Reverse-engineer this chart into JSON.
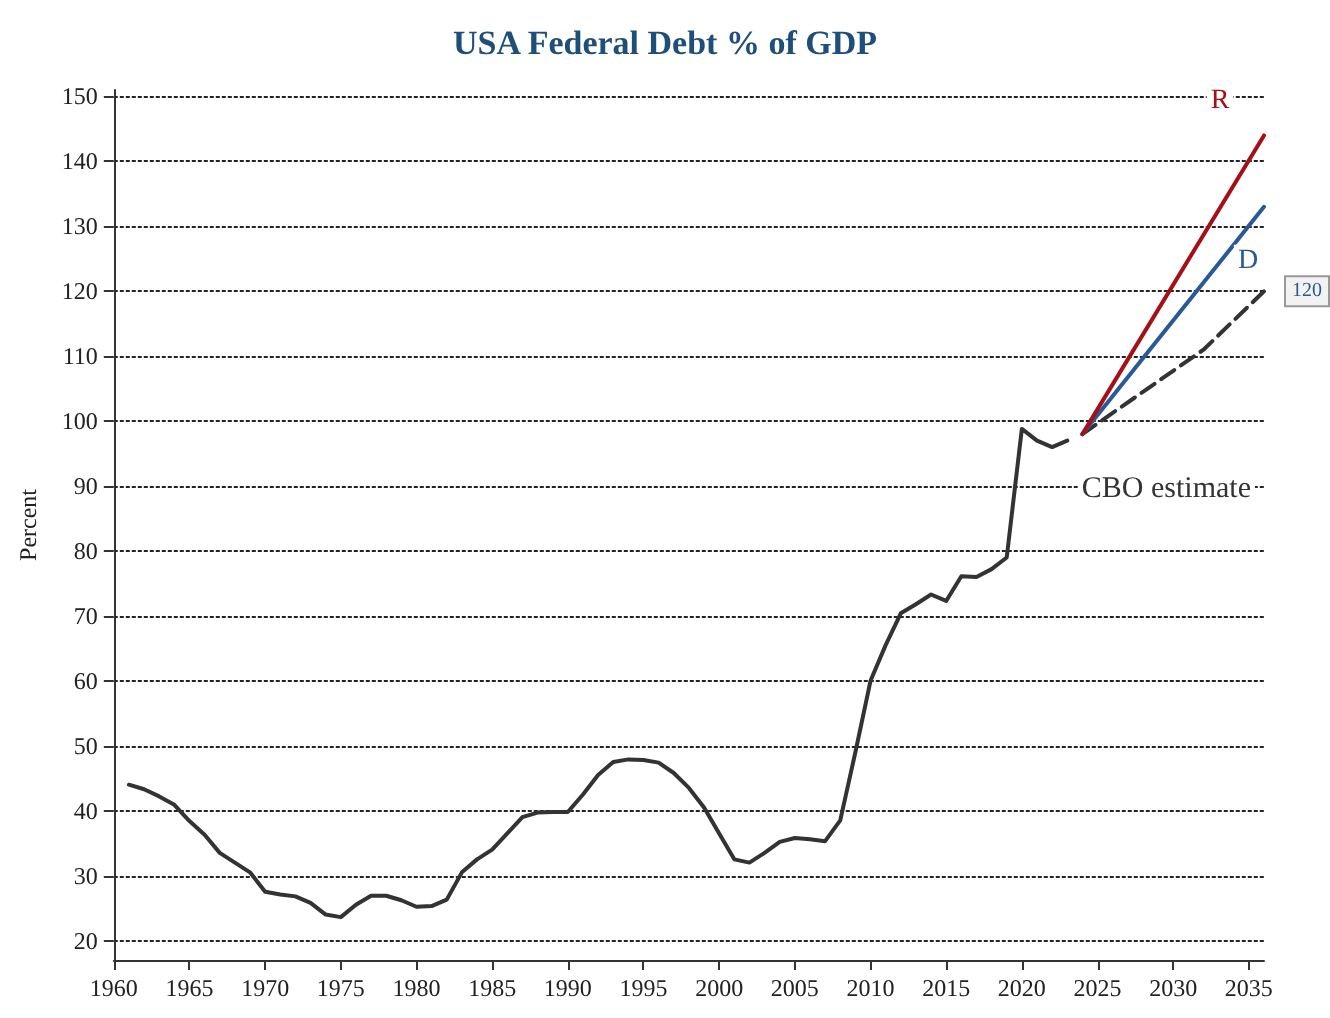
{
  "chart_data": {
    "type": "line",
    "title": "USA Federal Debt % of GDP",
    "ylabel": "Percent",
    "xlim": [
      1960,
      2036
    ],
    "xticks": [
      1960,
      1965,
      1970,
      1975,
      1980,
      1985,
      1990,
      1995,
      2000,
      2005,
      2010,
      2015,
      2020,
      2025,
      2030,
      2035
    ],
    "ylim": [
      17,
      151
    ],
    "yticks": [
      20,
      30,
      40,
      50,
      60,
      70,
      80,
      90,
      100,
      110,
      120,
      130,
      140,
      150
    ],
    "grid": "y",
    "legend": false,
    "marker": "none",
    "series": [
      {
        "color": "#333333",
        "line_style": "solid",
        "x": [
          1961,
          1962,
          1963,
          1964,
          1965,
          1966,
          1967,
          1968,
          1969,
          1970,
          1971,
          1972,
          1973,
          1974,
          1975,
          1976,
          1977,
          1978,
          1979,
          1980,
          1981,
          1982,
          1983,
          1984,
          1985,
          1986,
          1987,
          1988,
          1989,
          1990,
          1991,
          1992,
          1993,
          1994,
          1995,
          1996,
          1997,
          1998,
          1999,
          2000,
          2001,
          2002,
          2003,
          2004,
          2005,
          2006,
          2007,
          2008,
          2009,
          2010,
          2011,
          2012,
          2013,
          2014,
          2015,
          2016,
          2017,
          2018,
          2019,
          2020,
          2021,
          2022,
          2023
        ],
        "values": [
          44,
          43.3,
          42.2,
          40.9,
          38.4,
          36.3,
          33.5,
          32,
          30.5,
          27.5,
          27.1,
          26.8,
          25.8,
          24,
          23.6,
          25.5,
          26.9,
          26.9,
          26.2,
          25.2,
          25.3,
          26.3,
          30.5,
          32.5,
          34,
          36.5,
          39,
          39.7,
          39.8,
          39.8,
          42.5,
          45.5,
          47.5,
          47.9,
          47.8,
          47.4,
          45.8,
          43.5,
          40.5,
          36.5,
          32.5,
          32,
          33.5,
          35.2,
          35.8,
          35.6,
          35.3,
          38.5,
          49,
          60,
          65.5,
          70.4,
          71.8,
          73.3,
          72.3,
          76.1,
          76,
          77.2,
          79,
          98.8,
          97,
          96,
          97
        ]
      },
      {
        "name": "R",
        "color": "#a50f15",
        "line_style": "solid",
        "x": [
          2024,
          2036
        ],
        "values": [
          98,
          144
        ]
      },
      {
        "name": "D",
        "color": "#2a5a96",
        "line_style": "solid",
        "x": [
          2024,
          2036
        ],
        "values": [
          98,
          133
        ]
      },
      {
        "name": "CBO estimate",
        "color": "#333333",
        "line_style": "dashed",
        "x": [
          2024,
          2032,
          2036
        ],
        "values": [
          98,
          111,
          120
        ],
        "value_labels": [
          null,
          null,
          "120"
        ]
      }
    ]
  }
}
